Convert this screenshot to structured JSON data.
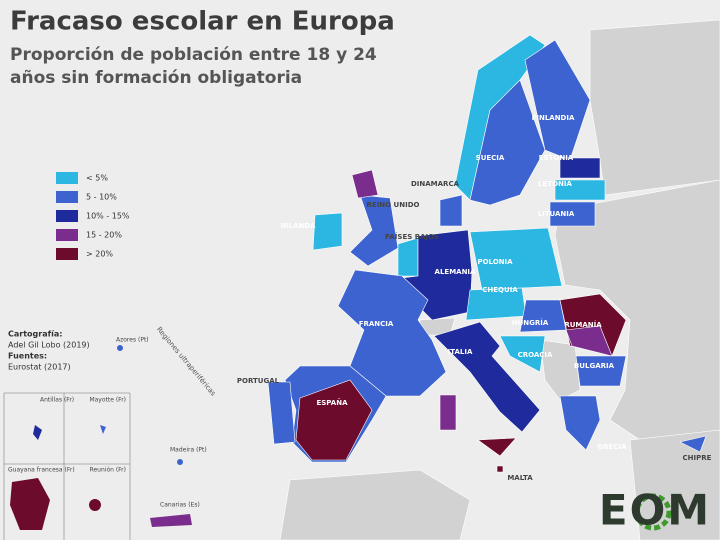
{
  "header": {
    "title": "Fracaso escolar en Europa",
    "subtitle_lines": [
      "Proporción de población entre 18 y 24",
      "años sin formación obligatoria"
    ]
  },
  "legend": {
    "items": [
      {
        "label": "< 5%",
        "color": "#2bb7e2"
      },
      {
        "label": "5 - 10%",
        "color": "#3c63cf"
      },
      {
        "label": "10% - 15%",
        "color": "#1f2b9c"
      },
      {
        "label": "15 - 20%",
        "color": "#7a2d8c"
      },
      {
        "label": "> 20%",
        "color": "#6c0b2c"
      }
    ]
  },
  "country_labels": [
    "FINLANDIA",
    "SUECIA",
    "ESTONIA",
    "LETONIA",
    "DINAMARCA",
    "REINO UNIDO",
    "LITUANIA",
    "IRLANDA",
    "PAÍSES BAJOS",
    "POLONIA",
    "ALEMANIA",
    "CHEQUIA",
    "FRANCIA",
    "HUNGRÍA",
    "RUMANÍA",
    "ITALIA",
    "CROACIA",
    "BULGARIA",
    "PORTUGAL",
    "ESPAÑA",
    "GRECIA",
    "CHIPRE",
    "MALTA"
  ],
  "regions_label": "Regiones ultraperiféricas",
  "insets": [
    "Antillas (Fr)",
    "Mayotte (Fr)",
    "Guayana francesa (Fr)",
    "Reunión (Fr)"
  ],
  "islands": [
    "Azores (Pt)",
    "Madeira (Pt)",
    "Canarias (Es)"
  ],
  "credits": {
    "cartography_label": "Cartografía:",
    "cartography": "Adel Gil Lobo (2019)",
    "sources_label": "Fuentes:",
    "sources": "Eurostat (2017)"
  },
  "logo": "EOM"
}
